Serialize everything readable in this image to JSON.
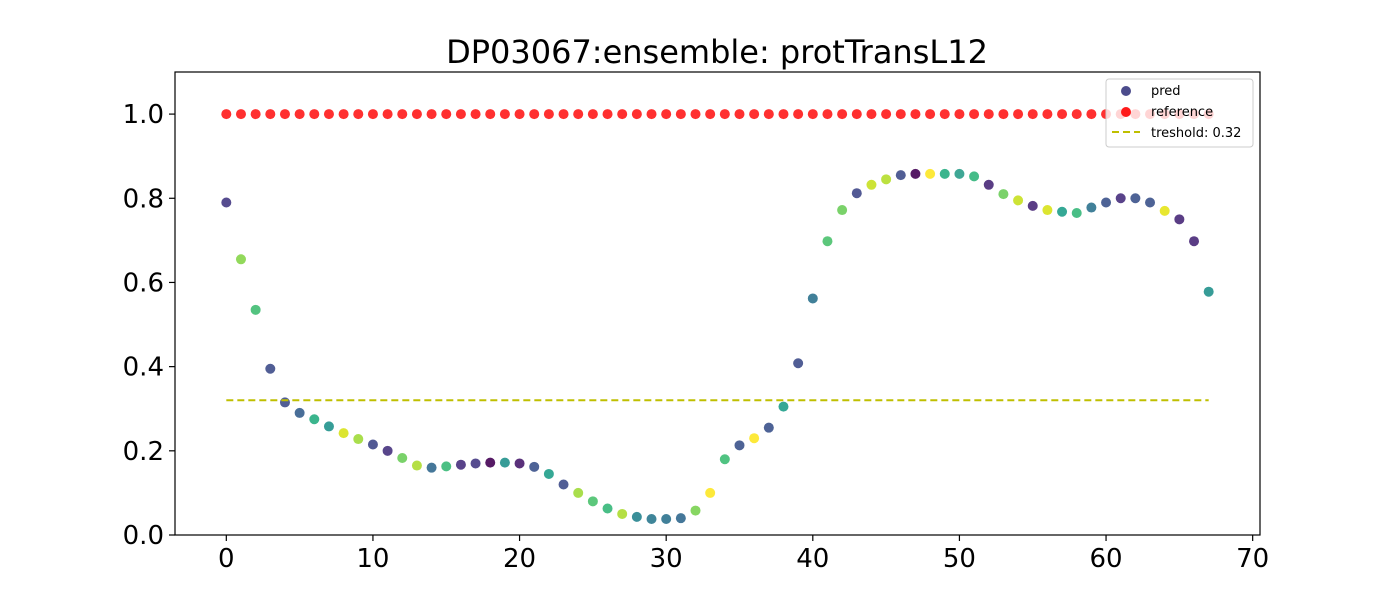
{
  "chart_data": {
    "type": "scatter",
    "title": "DP03067:ensemble: protTransL12",
    "xlabel": "",
    "ylabel": "",
    "xlim": [
      -3.5,
      70.5
    ],
    "ylim": [
      0.0,
      1.1
    ],
    "xticks": [
      0,
      10,
      20,
      30,
      40,
      50,
      60,
      70
    ],
    "yticks": [
      0.0,
      0.2,
      0.4,
      0.6,
      0.8,
      1.0
    ],
    "xtick_labels": [
      "0",
      "10",
      "20",
      "30",
      "40",
      "50",
      "60",
      "70"
    ],
    "ytick_labels": [
      "0.0",
      "0.2",
      "0.4",
      "0.6",
      "0.8",
      "1.0"
    ],
    "grid": false,
    "legend_position": "top-right",
    "series": [
      {
        "name": "pred",
        "kind": "scatter",
        "legend_color": "#4c4c8c",
        "x": [
          0,
          1,
          2,
          3,
          4,
          5,
          6,
          7,
          8,
          9,
          10,
          11,
          12,
          13,
          14,
          15,
          16,
          17,
          18,
          19,
          20,
          21,
          22,
          23,
          24,
          25,
          26,
          27,
          28,
          29,
          30,
          31,
          32,
          33,
          34,
          35,
          36,
          37,
          38,
          39,
          40,
          41,
          42,
          43,
          44,
          45,
          46,
          47,
          48,
          49,
          50,
          51,
          52,
          53,
          54,
          55,
          56,
          57,
          58,
          59,
          60,
          61,
          62,
          63,
          64,
          65,
          66,
          67
        ],
        "y": [
          0.79,
          0.655,
          0.535,
          0.395,
          0.315,
          0.29,
          0.275,
          0.258,
          0.242,
          0.228,
          0.215,
          0.2,
          0.183,
          0.165,
          0.16,
          0.163,
          0.167,
          0.17,
          0.172,
          0.172,
          0.17,
          0.162,
          0.145,
          0.12,
          0.1,
          0.08,
          0.063,
          0.05,
          0.043,
          0.038,
          0.038,
          0.04,
          0.058,
          0.1,
          0.18,
          0.213,
          0.23,
          0.255,
          0.305,
          0.408,
          0.562,
          0.698,
          0.772,
          0.812,
          0.832,
          0.845,
          0.855,
          0.858,
          0.858,
          0.858,
          0.858,
          0.852,
          0.832,
          0.81,
          0.795,
          0.782,
          0.772,
          0.768,
          0.765,
          0.778,
          0.79,
          0.8,
          0.8,
          0.79,
          0.77,
          0.75,
          0.698,
          0.578
        ],
        "colors": [
          "#443983",
          "#86d549",
          "#40bd72",
          "#3e4c8a",
          "#3e4c8a",
          "#355e8d",
          "#26ad81",
          "#20928c",
          "#d8e219",
          "#a0da39",
          "#3f4788",
          "#46327e",
          "#6ccd5a",
          "#addc30",
          "#31688e",
          "#38b977",
          "#472f7d",
          "#443983",
          "#440154",
          "#21918c",
          "#481b6d",
          "#3b528b",
          "#1f9e89",
          "#3e4c8a",
          "#a0da39",
          "#4ac16d",
          "#35b779",
          "#addc30",
          "#25838e",
          "#2a788e",
          "#2c728e",
          "#31688e",
          "#7ad151",
          "#fde725",
          "#3dbc74",
          "#3b528b",
          "#fde725",
          "#3b528b",
          "#1f9e89",
          "#3e4c8a",
          "#2c728e",
          "#4ac16d",
          "#6ccd5a",
          "#3f4788",
          "#c8e020",
          "#b5de2b",
          "#3e4c8a",
          "#440154",
          "#fde725",
          "#26ad81",
          "#2a9d8a",
          "#31b57b",
          "#482878",
          "#6ccd5a",
          "#c8e020",
          "#482878",
          "#d8e219",
          "#1f9e89",
          "#35b779",
          "#2c728e",
          "#3b528b",
          "#472f7d",
          "#3b528b",
          "#3b528b",
          "#e5e419",
          "#482878",
          "#482878",
          "#21918c"
        ]
      },
      {
        "name": "reference",
        "kind": "scatter",
        "color": "#ff1a1a",
        "x": [
          0,
          1,
          2,
          3,
          4,
          5,
          6,
          7,
          8,
          9,
          10,
          11,
          12,
          13,
          14,
          15,
          16,
          17,
          18,
          19,
          20,
          21,
          22,
          23,
          24,
          25,
          26,
          27,
          28,
          29,
          30,
          31,
          32,
          33,
          34,
          35,
          36,
          37,
          38,
          39,
          40,
          41,
          42,
          43,
          44,
          45,
          46,
          47,
          48,
          49,
          50,
          51,
          52,
          53,
          54,
          55,
          56,
          57,
          58,
          59,
          60,
          61,
          62,
          63,
          64,
          65,
          66,
          67
        ],
        "y": [
          1,
          1,
          1,
          1,
          1,
          1,
          1,
          1,
          1,
          1,
          1,
          1,
          1,
          1,
          1,
          1,
          1,
          1,
          1,
          1,
          1,
          1,
          1,
          1,
          1,
          1,
          1,
          1,
          1,
          1,
          1,
          1,
          1,
          1,
          1,
          1,
          1,
          1,
          1,
          1,
          1,
          1,
          1,
          1,
          1,
          1,
          1,
          1,
          1,
          1,
          1,
          1,
          1,
          1,
          1,
          1,
          1,
          1,
          1,
          1,
          1,
          1,
          1,
          1,
          1,
          1,
          1,
          1
        ]
      },
      {
        "name": "treshold: 0.32",
        "kind": "hline",
        "color": "#bfbf00",
        "y": 0.32,
        "x_start": 0,
        "x_end": 67
      }
    ]
  }
}
